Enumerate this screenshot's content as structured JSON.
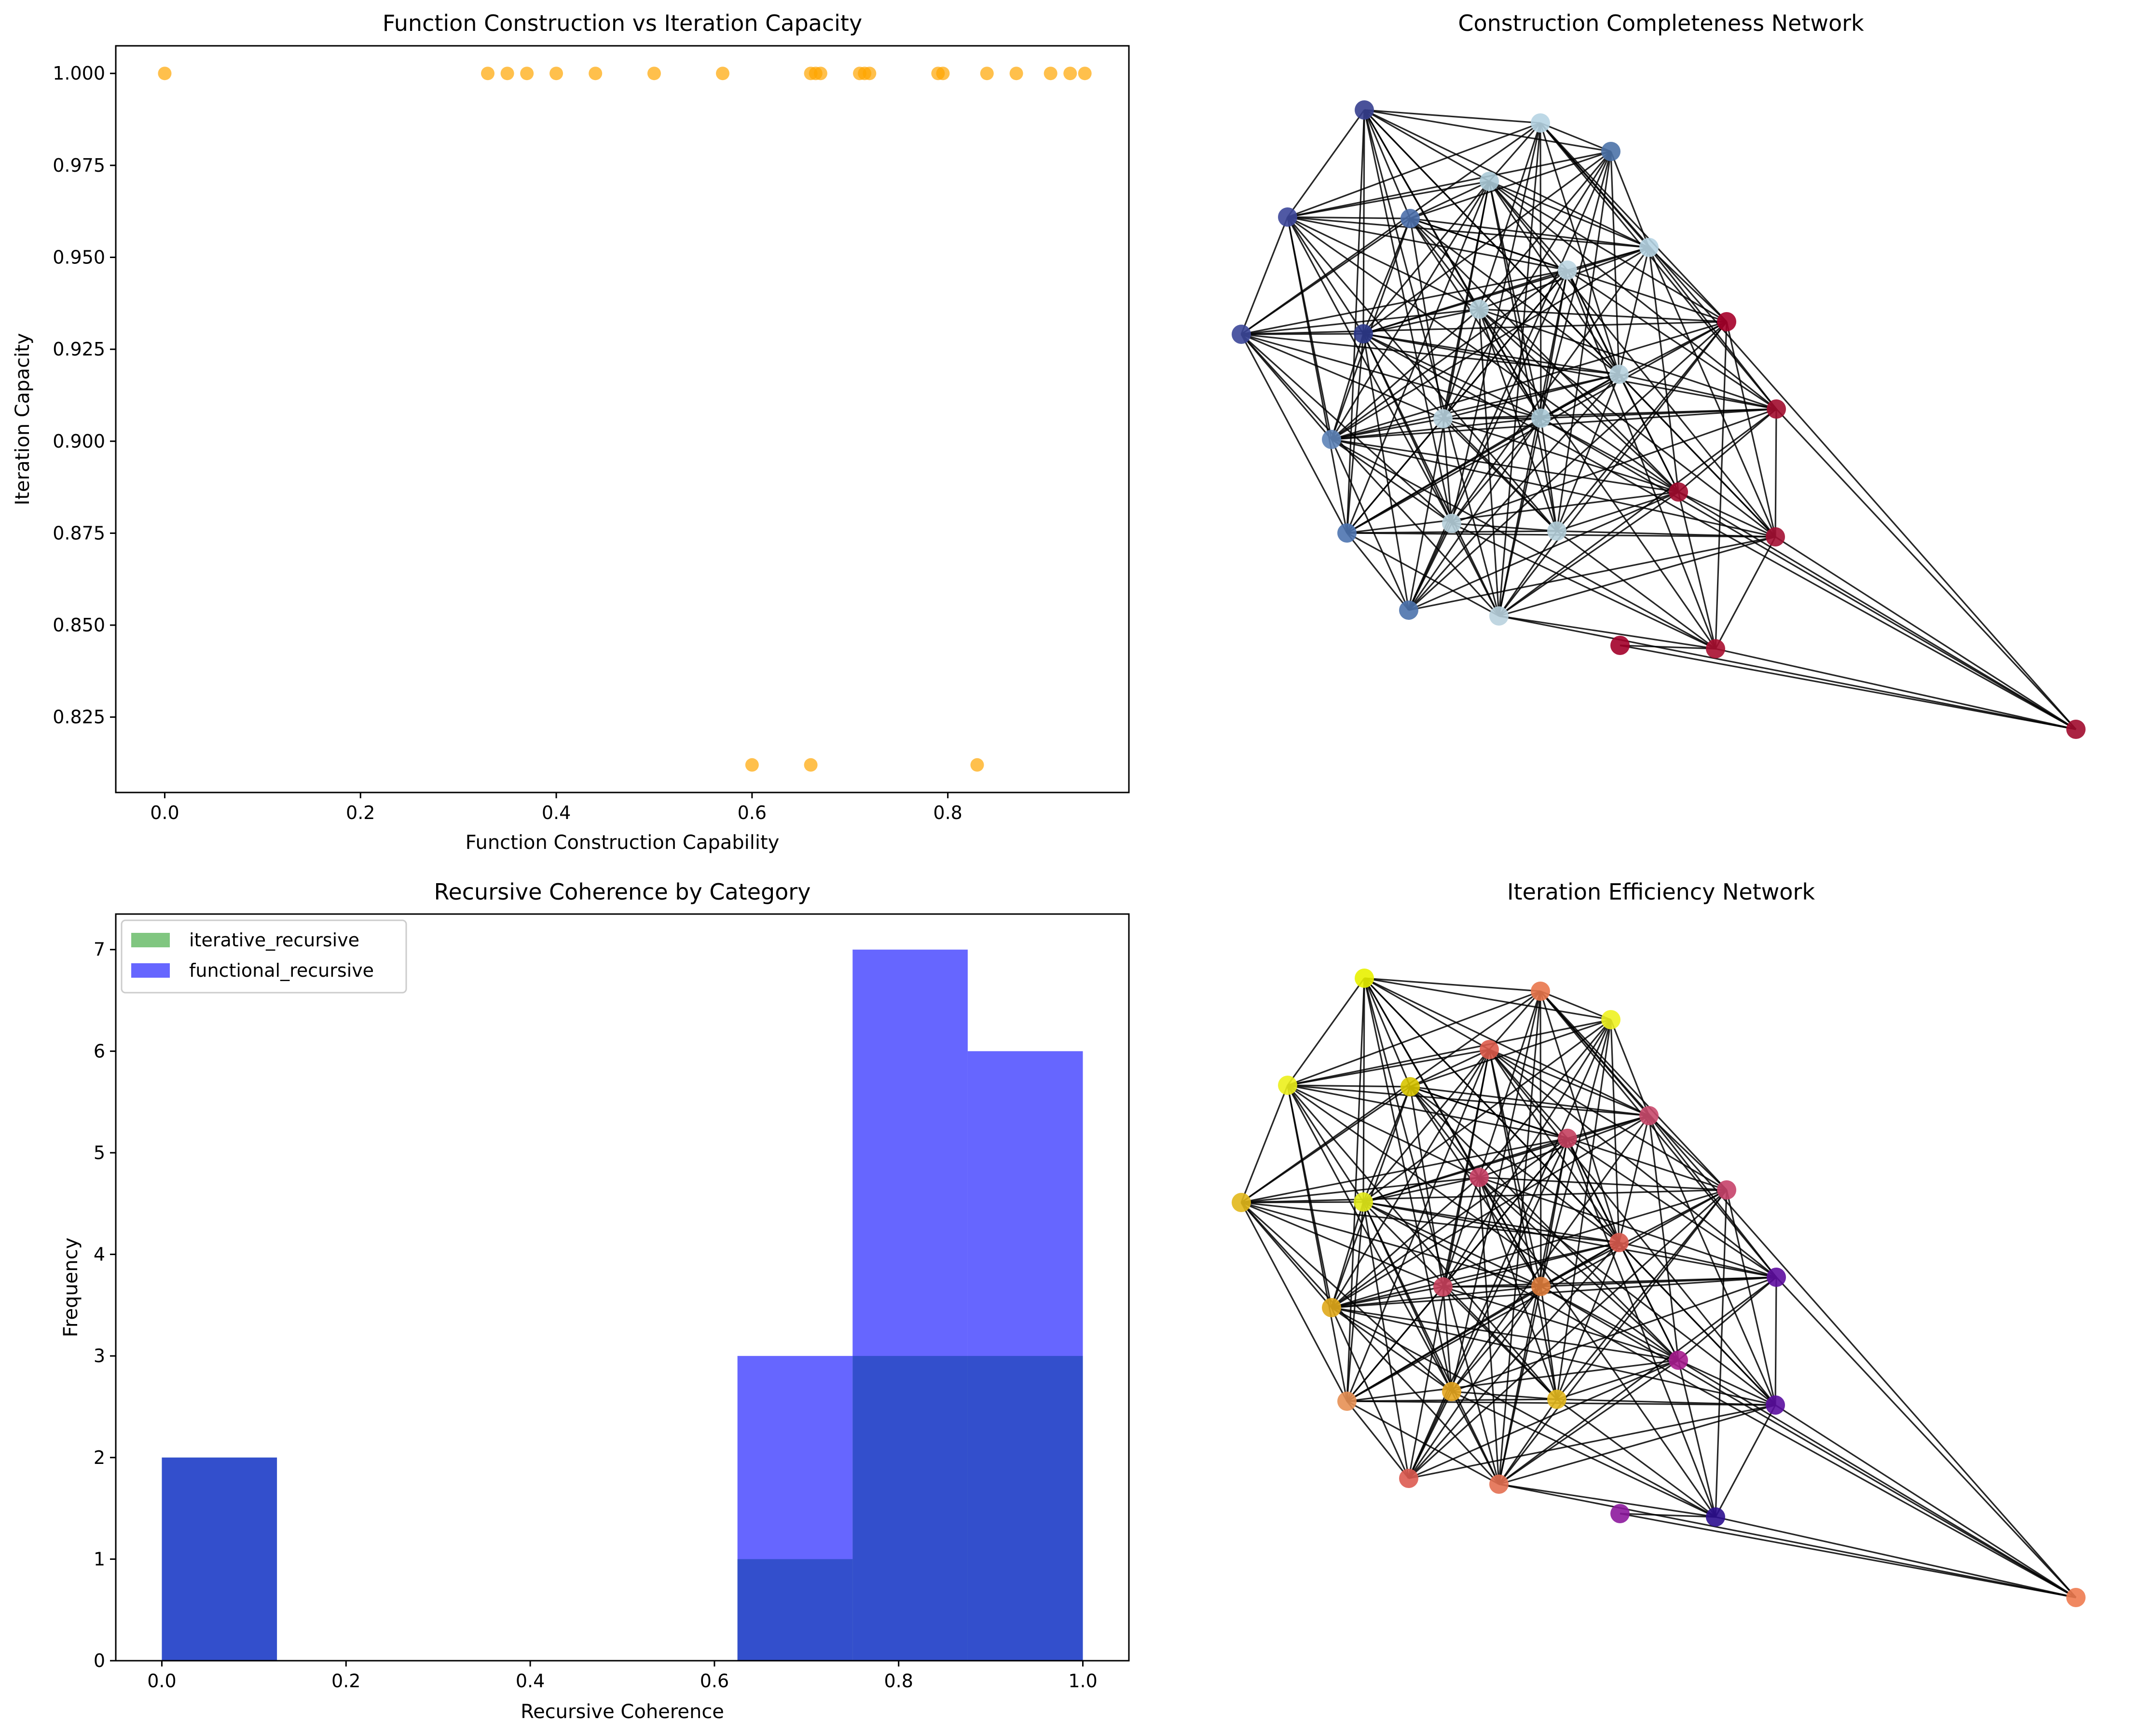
{
  "colors": {
    "scatter": "#ffa500",
    "hist_iterative": "#2ca02c",
    "hist_functional": "#0000ff",
    "edge": "#000000"
  },
  "chart_data": [
    {
      "id": "scatter",
      "type": "scatter",
      "title": "Function Construction vs Iteration Capacity",
      "xlabel": "Function Construction Capability",
      "ylabel": "Iteration Capacity",
      "xlim": [
        -0.05,
        0.985
      ],
      "ylim": [
        0.8045,
        1.0075
      ],
      "xticks": [
        0.0,
        0.2,
        0.4,
        0.6,
        0.8
      ],
      "xtick_labels": [
        "0.0",
        "0.2",
        "0.4",
        "0.6",
        "0.8"
      ],
      "yticks": [
        0.825,
        0.85,
        0.875,
        0.9,
        0.925,
        0.95,
        0.975,
        1.0
      ],
      "ytick_labels": [
        "0.825",
        "0.850",
        "0.875",
        "0.900",
        "0.925",
        "0.950",
        "0.975",
        "1.000"
      ],
      "grid": false,
      "points": [
        {
          "x": 0.0,
          "y": 1.0
        },
        {
          "x": 0.33,
          "y": 1.0
        },
        {
          "x": 0.35,
          "y": 1.0
        },
        {
          "x": 0.37,
          "y": 1.0
        },
        {
          "x": 0.4,
          "y": 1.0
        },
        {
          "x": 0.44,
          "y": 1.0
        },
        {
          "x": 0.5,
          "y": 1.0
        },
        {
          "x": 0.57,
          "y": 1.0
        },
        {
          "x": 0.66,
          "y": 1.0
        },
        {
          "x": 0.665,
          "y": 1.0
        },
        {
          "x": 0.67,
          "y": 1.0
        },
        {
          "x": 0.71,
          "y": 1.0
        },
        {
          "x": 0.715,
          "y": 1.0
        },
        {
          "x": 0.72,
          "y": 1.0
        },
        {
          "x": 0.79,
          "y": 1.0
        },
        {
          "x": 0.795,
          "y": 1.0
        },
        {
          "x": 0.84,
          "y": 1.0
        },
        {
          "x": 0.87,
          "y": 1.0
        },
        {
          "x": 0.905,
          "y": 1.0
        },
        {
          "x": 0.925,
          "y": 1.0
        },
        {
          "x": 0.94,
          "y": 1.0
        },
        {
          "x": 0.6,
          "y": 0.812
        },
        {
          "x": 0.66,
          "y": 0.812
        },
        {
          "x": 0.83,
          "y": 0.812
        }
      ]
    },
    {
      "id": "network_completeness",
      "type": "network",
      "title": "Construction Completeness Network"
    },
    {
      "id": "histogram",
      "type": "bar",
      "title": "Recursive Coherence by Category",
      "xlabel": "Recursive Coherence",
      "ylabel": "Frequency",
      "xlim": [
        -0.05,
        1.05
      ],
      "ylim": [
        0,
        7.35
      ],
      "xticks": [
        0.0,
        0.2,
        0.4,
        0.6,
        0.8,
        1.0
      ],
      "xtick_labels": [
        "0.0",
        "0.2",
        "0.4",
        "0.6",
        "0.8",
        "1.0"
      ],
      "yticks": [
        0,
        1,
        2,
        3,
        4,
        5,
        6,
        7
      ],
      "ytick_labels": [
        "0",
        "1",
        "2",
        "3",
        "4",
        "5",
        "6",
        "7"
      ],
      "legend_position": "top-left",
      "bin_edges": [
        0.0,
        0.125,
        0.25,
        0.375,
        0.5,
        0.625,
        0.75,
        0.875,
        1.0
      ],
      "series": [
        {
          "name": "iterative_recursive",
          "values": [
            2,
            0,
            0,
            0,
            0,
            1,
            3,
            3
          ]
        },
        {
          "name": "functional_recursive",
          "values": [
            2,
            0,
            0,
            0,
            0,
            3,
            7,
            6
          ]
        }
      ]
    },
    {
      "id": "network_efficiency",
      "type": "network",
      "title": "Iteration Efficiency Network"
    }
  ]
}
